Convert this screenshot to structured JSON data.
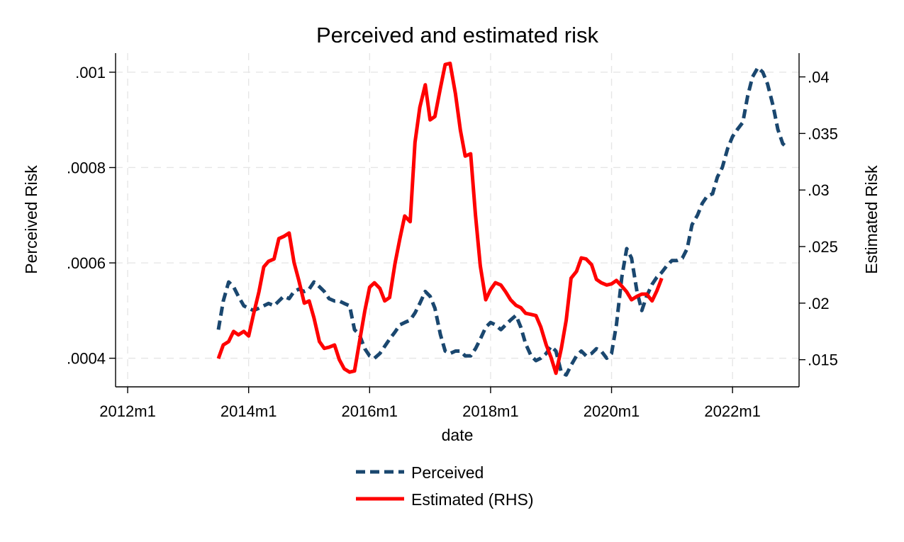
{
  "chart_data": {
    "type": "line",
    "title": "Perceived and estimated risk",
    "xlabel": "date",
    "ylabel_left": "Perceived Risk",
    "ylabel_right": "Estimated Risk",
    "x_ticks": [
      {
        "x": 2012.0,
        "label": "2012m1"
      },
      {
        "x": 2014.0,
        "label": "2014m1"
      },
      {
        "x": 2016.0,
        "label": "2016m1"
      },
      {
        "x": 2018.0,
        "label": "2018m1"
      },
      {
        "x": 2020.0,
        "label": "2020m1"
      },
      {
        "x": 2022.0,
        "label": "2022m1"
      }
    ],
    "xlim": [
      2011.8,
      2023.1
    ],
    "y_left": {
      "lim": [
        0.00034,
        0.00104
      ],
      "ticks": [
        {
          "v": 0.0004,
          "label": ".0004"
        },
        {
          "v": 0.0006,
          "label": ".0006"
        },
        {
          "v": 0.0008,
          "label": ".0008"
        },
        {
          "v": 0.001,
          "label": ".001"
        }
      ]
    },
    "y_right": {
      "lim": [
        0.0126,
        0.0421
      ],
      "ticks": [
        {
          "v": 0.015,
          "label": ".015"
        },
        {
          "v": 0.02,
          "label": ".02"
        },
        {
          "v": 0.025,
          "label": ".025"
        },
        {
          "v": 0.03,
          "label": ".03"
        },
        {
          "v": 0.035,
          "label": ".035"
        },
        {
          "v": 0.04,
          "label": ".04"
        }
      ]
    },
    "grid": true,
    "legend_position": "bottom-center",
    "series": [
      {
        "name": "Perceived",
        "axis": "left",
        "color": "#1a476f",
        "style": "dashed",
        "points": [
          [
            2013.5,
            0.00046
          ],
          [
            2013.58,
            0.00052
          ],
          [
            2013.67,
            0.00056
          ],
          [
            2013.75,
            0.00055
          ],
          [
            2013.83,
            0.00053
          ],
          [
            2013.92,
            0.00051
          ],
          [
            2014.0,
            0.000505
          ],
          [
            2014.08,
            0.0005
          ],
          [
            2014.17,
            0.000505
          ],
          [
            2014.25,
            0.00051
          ],
          [
            2014.33,
            0.000515
          ],
          [
            2014.42,
            0.00051
          ],
          [
            2014.5,
            0.00052
          ],
          [
            2014.58,
            0.00053
          ],
          [
            2014.67,
            0.000525
          ],
          [
            2014.75,
            0.00054
          ],
          [
            2014.83,
            0.000545
          ],
          [
            2014.92,
            0.00054
          ],
          [
            2015.0,
            0.000545
          ],
          [
            2015.08,
            0.00056
          ],
          [
            2015.17,
            0.00055
          ],
          [
            2015.25,
            0.00054
          ],
          [
            2015.33,
            0.000525
          ],
          [
            2015.42,
            0.00052
          ],
          [
            2015.5,
            0.00052
          ],
          [
            2015.58,
            0.000515
          ],
          [
            2015.67,
            0.00051
          ],
          [
            2015.75,
            0.00046
          ],
          [
            2015.83,
            0.00045
          ],
          [
            2015.92,
            0.00042
          ],
          [
            2016.0,
            0.000405
          ],
          [
            2016.08,
            0.0004
          ],
          [
            2016.17,
            0.00041
          ],
          [
            2016.25,
            0.000425
          ],
          [
            2016.33,
            0.00044
          ],
          [
            2016.42,
            0.000455
          ],
          [
            2016.5,
            0.00047
          ],
          [
            2016.58,
            0.000475
          ],
          [
            2016.67,
            0.00048
          ],
          [
            2016.75,
            0.000495
          ],
          [
            2016.83,
            0.000515
          ],
          [
            2016.92,
            0.00054
          ],
          [
            2017.0,
            0.00053
          ],
          [
            2017.08,
            0.000505
          ],
          [
            2017.17,
            0.00045
          ],
          [
            2017.25,
            0.000415
          ],
          [
            2017.33,
            0.00041
          ],
          [
            2017.42,
            0.000415
          ],
          [
            2017.5,
            0.000415
          ],
          [
            2017.58,
            0.000405
          ],
          [
            2017.67,
            0.000405
          ],
          [
            2017.75,
            0.00042
          ],
          [
            2017.83,
            0.00044
          ],
          [
            2017.92,
            0.000465
          ],
          [
            2018.0,
            0.000475
          ],
          [
            2018.08,
            0.00047
          ],
          [
            2018.17,
            0.00046
          ],
          [
            2018.25,
            0.00047
          ],
          [
            2018.33,
            0.00048
          ],
          [
            2018.42,
            0.00049
          ],
          [
            2018.5,
            0.000465
          ],
          [
            2018.58,
            0.00043
          ],
          [
            2018.67,
            0.000405
          ],
          [
            2018.75,
            0.000395
          ],
          [
            2018.83,
            0.0004
          ],
          [
            2018.92,
            0.00041
          ],
          [
            2019.0,
            0.000425
          ],
          [
            2019.08,
            0.000415
          ],
          [
            2019.17,
            0.00037
          ],
          [
            2019.25,
            0.000365
          ],
          [
            2019.33,
            0.000385
          ],
          [
            2019.42,
            0.000405
          ],
          [
            2019.5,
            0.000415
          ],
          [
            2019.58,
            0.000405
          ],
          [
            2019.67,
            0.00041
          ],
          [
            2019.75,
            0.00042
          ],
          [
            2019.83,
            0.000415
          ],
          [
            2019.92,
            0.0004
          ],
          [
            2020.0,
            0.00041
          ],
          [
            2020.08,
            0.00047
          ],
          [
            2020.17,
            0.00057
          ],
          [
            2020.25,
            0.00063
          ],
          [
            2020.33,
            0.00061
          ],
          [
            2020.42,
            0.00054
          ],
          [
            2020.5,
            0.0005
          ],
          [
            2020.58,
            0.00053
          ],
          [
            2020.67,
            0.000555
          ],
          [
            2020.75,
            0.00057
          ],
          [
            2020.83,
            0.00058
          ],
          [
            2020.92,
            0.000595
          ],
          [
            2021.0,
            0.000605
          ],
          [
            2021.08,
            0.000605
          ],
          [
            2021.17,
            0.00061
          ],
          [
            2021.25,
            0.00063
          ],
          [
            2021.33,
            0.00068
          ],
          [
            2021.42,
            0.0007
          ],
          [
            2021.5,
            0.000725
          ],
          [
            2021.58,
            0.00074
          ],
          [
            2021.67,
            0.000745
          ],
          [
            2021.75,
            0.00078
          ],
          [
            2021.83,
            0.0008
          ],
          [
            2021.92,
            0.00084
          ],
          [
            2022.0,
            0.000865
          ],
          [
            2022.08,
            0.00088
          ],
          [
            2022.17,
            0.000895
          ],
          [
            2022.25,
            0.00095
          ],
          [
            2022.33,
            0.00099
          ],
          [
            2022.42,
            0.00101
          ],
          [
            2022.5,
            0.001
          ],
          [
            2022.58,
            0.000975
          ],
          [
            2022.67,
            0.00093
          ],
          [
            2022.75,
            0.00088
          ],
          [
            2022.83,
            0.00085
          ],
          [
            2022.92,
            0.00084
          ]
        ]
      },
      {
        "name": "Estimated (RHS)",
        "axis": "right",
        "color": "#ff0000",
        "style": "solid",
        "points": [
          [
            2013.5,
            0.0151
          ],
          [
            2013.58,
            0.0163
          ],
          [
            2013.67,
            0.0166
          ],
          [
            2013.75,
            0.0175
          ],
          [
            2013.83,
            0.0172
          ],
          [
            2013.92,
            0.0175
          ],
          [
            2014.0,
            0.0171
          ],
          [
            2014.08,
            0.019
          ],
          [
            2014.17,
            0.021
          ],
          [
            2014.25,
            0.0232
          ],
          [
            2014.33,
            0.0237
          ],
          [
            2014.42,
            0.0239
          ],
          [
            2014.5,
            0.0257
          ],
          [
            2014.58,
            0.0259
          ],
          [
            2014.67,
            0.0262
          ],
          [
            2014.75,
            0.0236
          ],
          [
            2014.83,
            0.022
          ],
          [
            2014.92,
            0.02
          ],
          [
            2015.0,
            0.0202
          ],
          [
            2015.08,
            0.0187
          ],
          [
            2015.17,
            0.0166
          ],
          [
            2015.25,
            0.016
          ],
          [
            2015.33,
            0.0161
          ],
          [
            2015.42,
            0.0163
          ],
          [
            2015.5,
            0.015
          ],
          [
            2015.58,
            0.0142
          ],
          [
            2015.67,
            0.0139
          ],
          [
            2015.75,
            0.014
          ],
          [
            2015.83,
            0.0165
          ],
          [
            2015.92,
            0.0193
          ],
          [
            2016.0,
            0.0214
          ],
          [
            2016.08,
            0.0218
          ],
          [
            2016.17,
            0.0213
          ],
          [
            2016.25,
            0.0202
          ],
          [
            2016.33,
            0.0205
          ],
          [
            2016.42,
            0.0235
          ],
          [
            2016.5,
            0.0257
          ],
          [
            2016.58,
            0.0277
          ],
          [
            2016.67,
            0.0272
          ],
          [
            2016.75,
            0.0342
          ],
          [
            2016.83,
            0.0373
          ],
          [
            2016.92,
            0.0393
          ],
          [
            2017.0,
            0.0362
          ],
          [
            2017.08,
            0.0365
          ],
          [
            2017.17,
            0.039
          ],
          [
            2017.25,
            0.0411
          ],
          [
            2017.33,
            0.0412
          ],
          [
            2017.42,
            0.0385
          ],
          [
            2017.5,
            0.0353
          ],
          [
            2017.58,
            0.033
          ],
          [
            2017.67,
            0.0332
          ],
          [
            2017.75,
            0.0278
          ],
          [
            2017.83,
            0.0233
          ],
          [
            2017.92,
            0.0203
          ],
          [
            2018.0,
            0.0212
          ],
          [
            2018.08,
            0.0218
          ],
          [
            2018.17,
            0.0216
          ],
          [
            2018.25,
            0.021
          ],
          [
            2018.33,
            0.0203
          ],
          [
            2018.42,
            0.0198
          ],
          [
            2018.5,
            0.0196
          ],
          [
            2018.58,
            0.0191
          ],
          [
            2018.67,
            0.019
          ],
          [
            2018.75,
            0.0189
          ],
          [
            2018.83,
            0.0179
          ],
          [
            2018.92,
            0.0163
          ],
          [
            2019.0,
            0.0152
          ],
          [
            2019.08,
            0.0138
          ],
          [
            2019.17,
            0.016
          ],
          [
            2019.25,
            0.0185
          ],
          [
            2019.33,
            0.0222
          ],
          [
            2019.42,
            0.0228
          ],
          [
            2019.5,
            0.024
          ],
          [
            2019.58,
            0.0239
          ],
          [
            2019.67,
            0.0234
          ],
          [
            2019.75,
            0.0221
          ],
          [
            2019.83,
            0.0218
          ],
          [
            2019.92,
            0.0216
          ],
          [
            2020.0,
            0.0217
          ],
          [
            2020.08,
            0.022
          ],
          [
            2020.17,
            0.0215
          ],
          [
            2020.25,
            0.021
          ],
          [
            2020.33,
            0.0203
          ],
          [
            2020.42,
            0.0206
          ],
          [
            2020.5,
            0.0208
          ],
          [
            2020.58,
            0.0208
          ],
          [
            2020.67,
            0.0202
          ],
          [
            2020.75,
            0.0211
          ],
          [
            2020.83,
            0.0222
          ]
        ]
      }
    ]
  }
}
